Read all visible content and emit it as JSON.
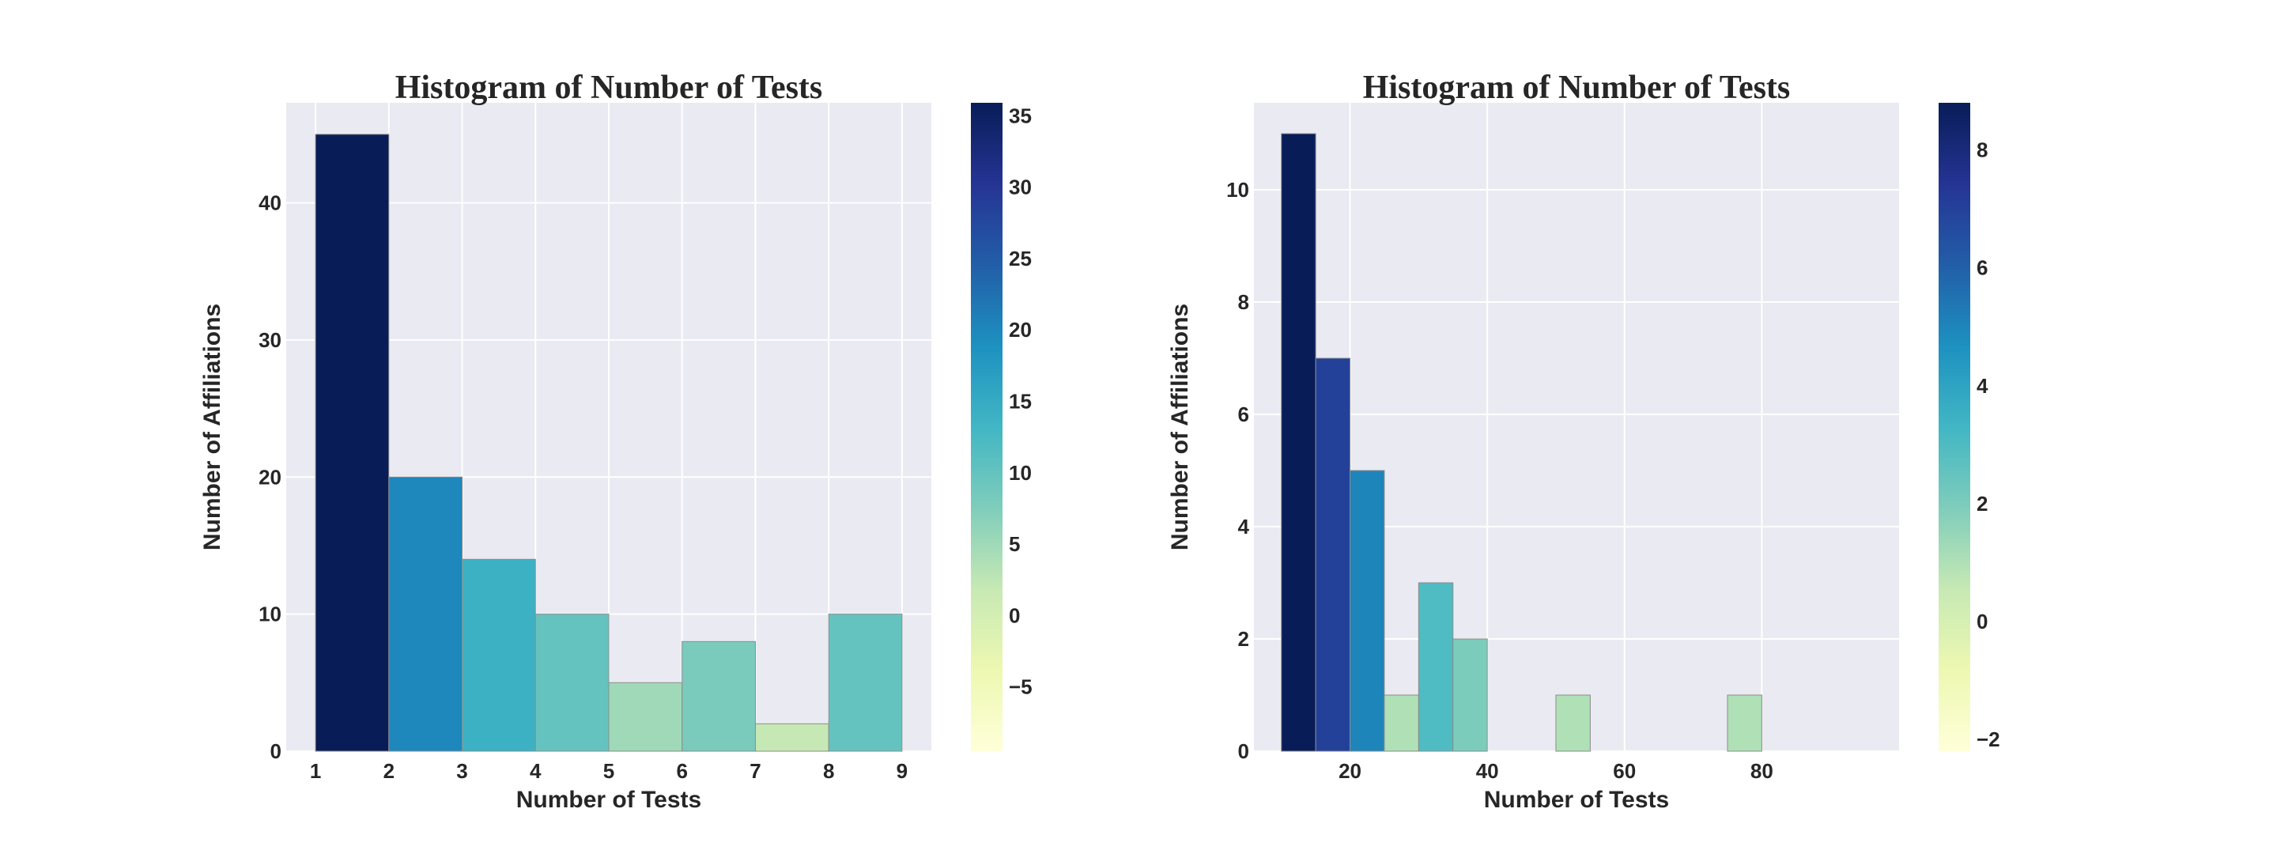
{
  "chart_data": [
    {
      "type": "bar",
      "title": "Histogram of Number of Tests",
      "xlabel": "Number of Tests",
      "ylabel": "Number of Affiliations",
      "bin_edges": [
        1,
        2,
        3,
        4,
        5,
        6,
        7,
        8,
        9
      ],
      "values": [
        45,
        20,
        14,
        10,
        5,
        8,
        2,
        10
      ],
      "xlim": [
        0.6,
        9.4
      ],
      "ylim": [
        0,
        47.3
      ],
      "xticks": [
        1,
        2,
        3,
        4,
        5,
        6,
        7,
        8,
        9
      ],
      "yticks": [
        0,
        10,
        20,
        30,
        40
      ],
      "grid": true,
      "colormap": "YlGnBu",
      "colorbar": {
        "range": [
          -9.5,
          35.9
        ],
        "ticks": [
          -5,
          0,
          5,
          10,
          15,
          20,
          25,
          30,
          35
        ]
      }
    },
    {
      "type": "bar",
      "title": "Histogram of Number of Tests",
      "xlabel": "Number of Tests",
      "ylabel": "Number of Affiliations",
      "bin_edges": [
        10,
        15,
        20,
        25,
        30,
        35,
        40,
        45,
        50,
        55,
        60,
        65,
        70,
        75,
        80
      ],
      "values": [
        11,
        7,
        5,
        1,
        3,
        2,
        0,
        0,
        1,
        0,
        0,
        0,
        0,
        1
      ],
      "xlim": [
        6,
        100
      ],
      "ylim": [
        0,
        11.55
      ],
      "xticks": [
        20,
        40,
        60,
        80
      ],
      "yticks": [
        0,
        2,
        4,
        6,
        8,
        10
      ],
      "grid": true,
      "colormap": "YlGnBu",
      "colorbar": {
        "range": [
          -2.2,
          8.8
        ],
        "ticks": [
          -2,
          0,
          2,
          4,
          6,
          8
        ]
      }
    }
  ]
}
